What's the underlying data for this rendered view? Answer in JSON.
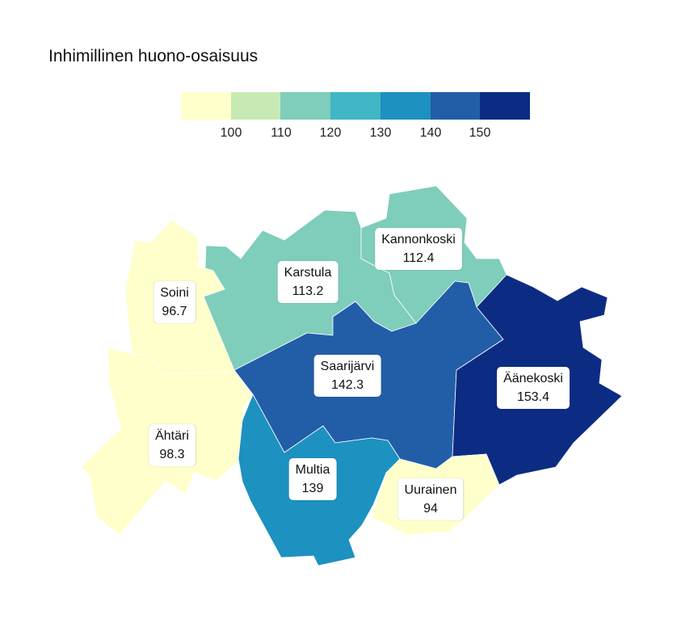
{
  "title": "Inhimillinen huono-osaisuus",
  "legend": {
    "colors": [
      "#ffffcc",
      "#c7e9b4",
      "#7fcdbb",
      "#41b6c4",
      "#1d91c0",
      "#225ea8",
      "#0c2c84"
    ],
    "ticks": [
      "100",
      "110",
      "120",
      "130",
      "140",
      "150"
    ]
  },
  "regions": [
    {
      "name": "Soini",
      "value": "96.7",
      "color": "#ffffcc"
    },
    {
      "name": "Ähtäri",
      "value": "98.3",
      "color": "#ffffcc"
    },
    {
      "name": "Karstula",
      "value": "113.2",
      "color": "#7fcdbb"
    },
    {
      "name": "Kannonkoski",
      "value": "112.4",
      "color": "#7fcdbb"
    },
    {
      "name": "Saarijärvi",
      "value": "142.3",
      "color": "#225ea8"
    },
    {
      "name": "Äänekoski",
      "value": "153.4",
      "color": "#0c2c84"
    },
    {
      "name": "Multia",
      "value": "139",
      "color": "#1d91c0"
    },
    {
      "name": "Uurainen",
      "value": "94",
      "color": "#ffffcc"
    }
  ]
}
